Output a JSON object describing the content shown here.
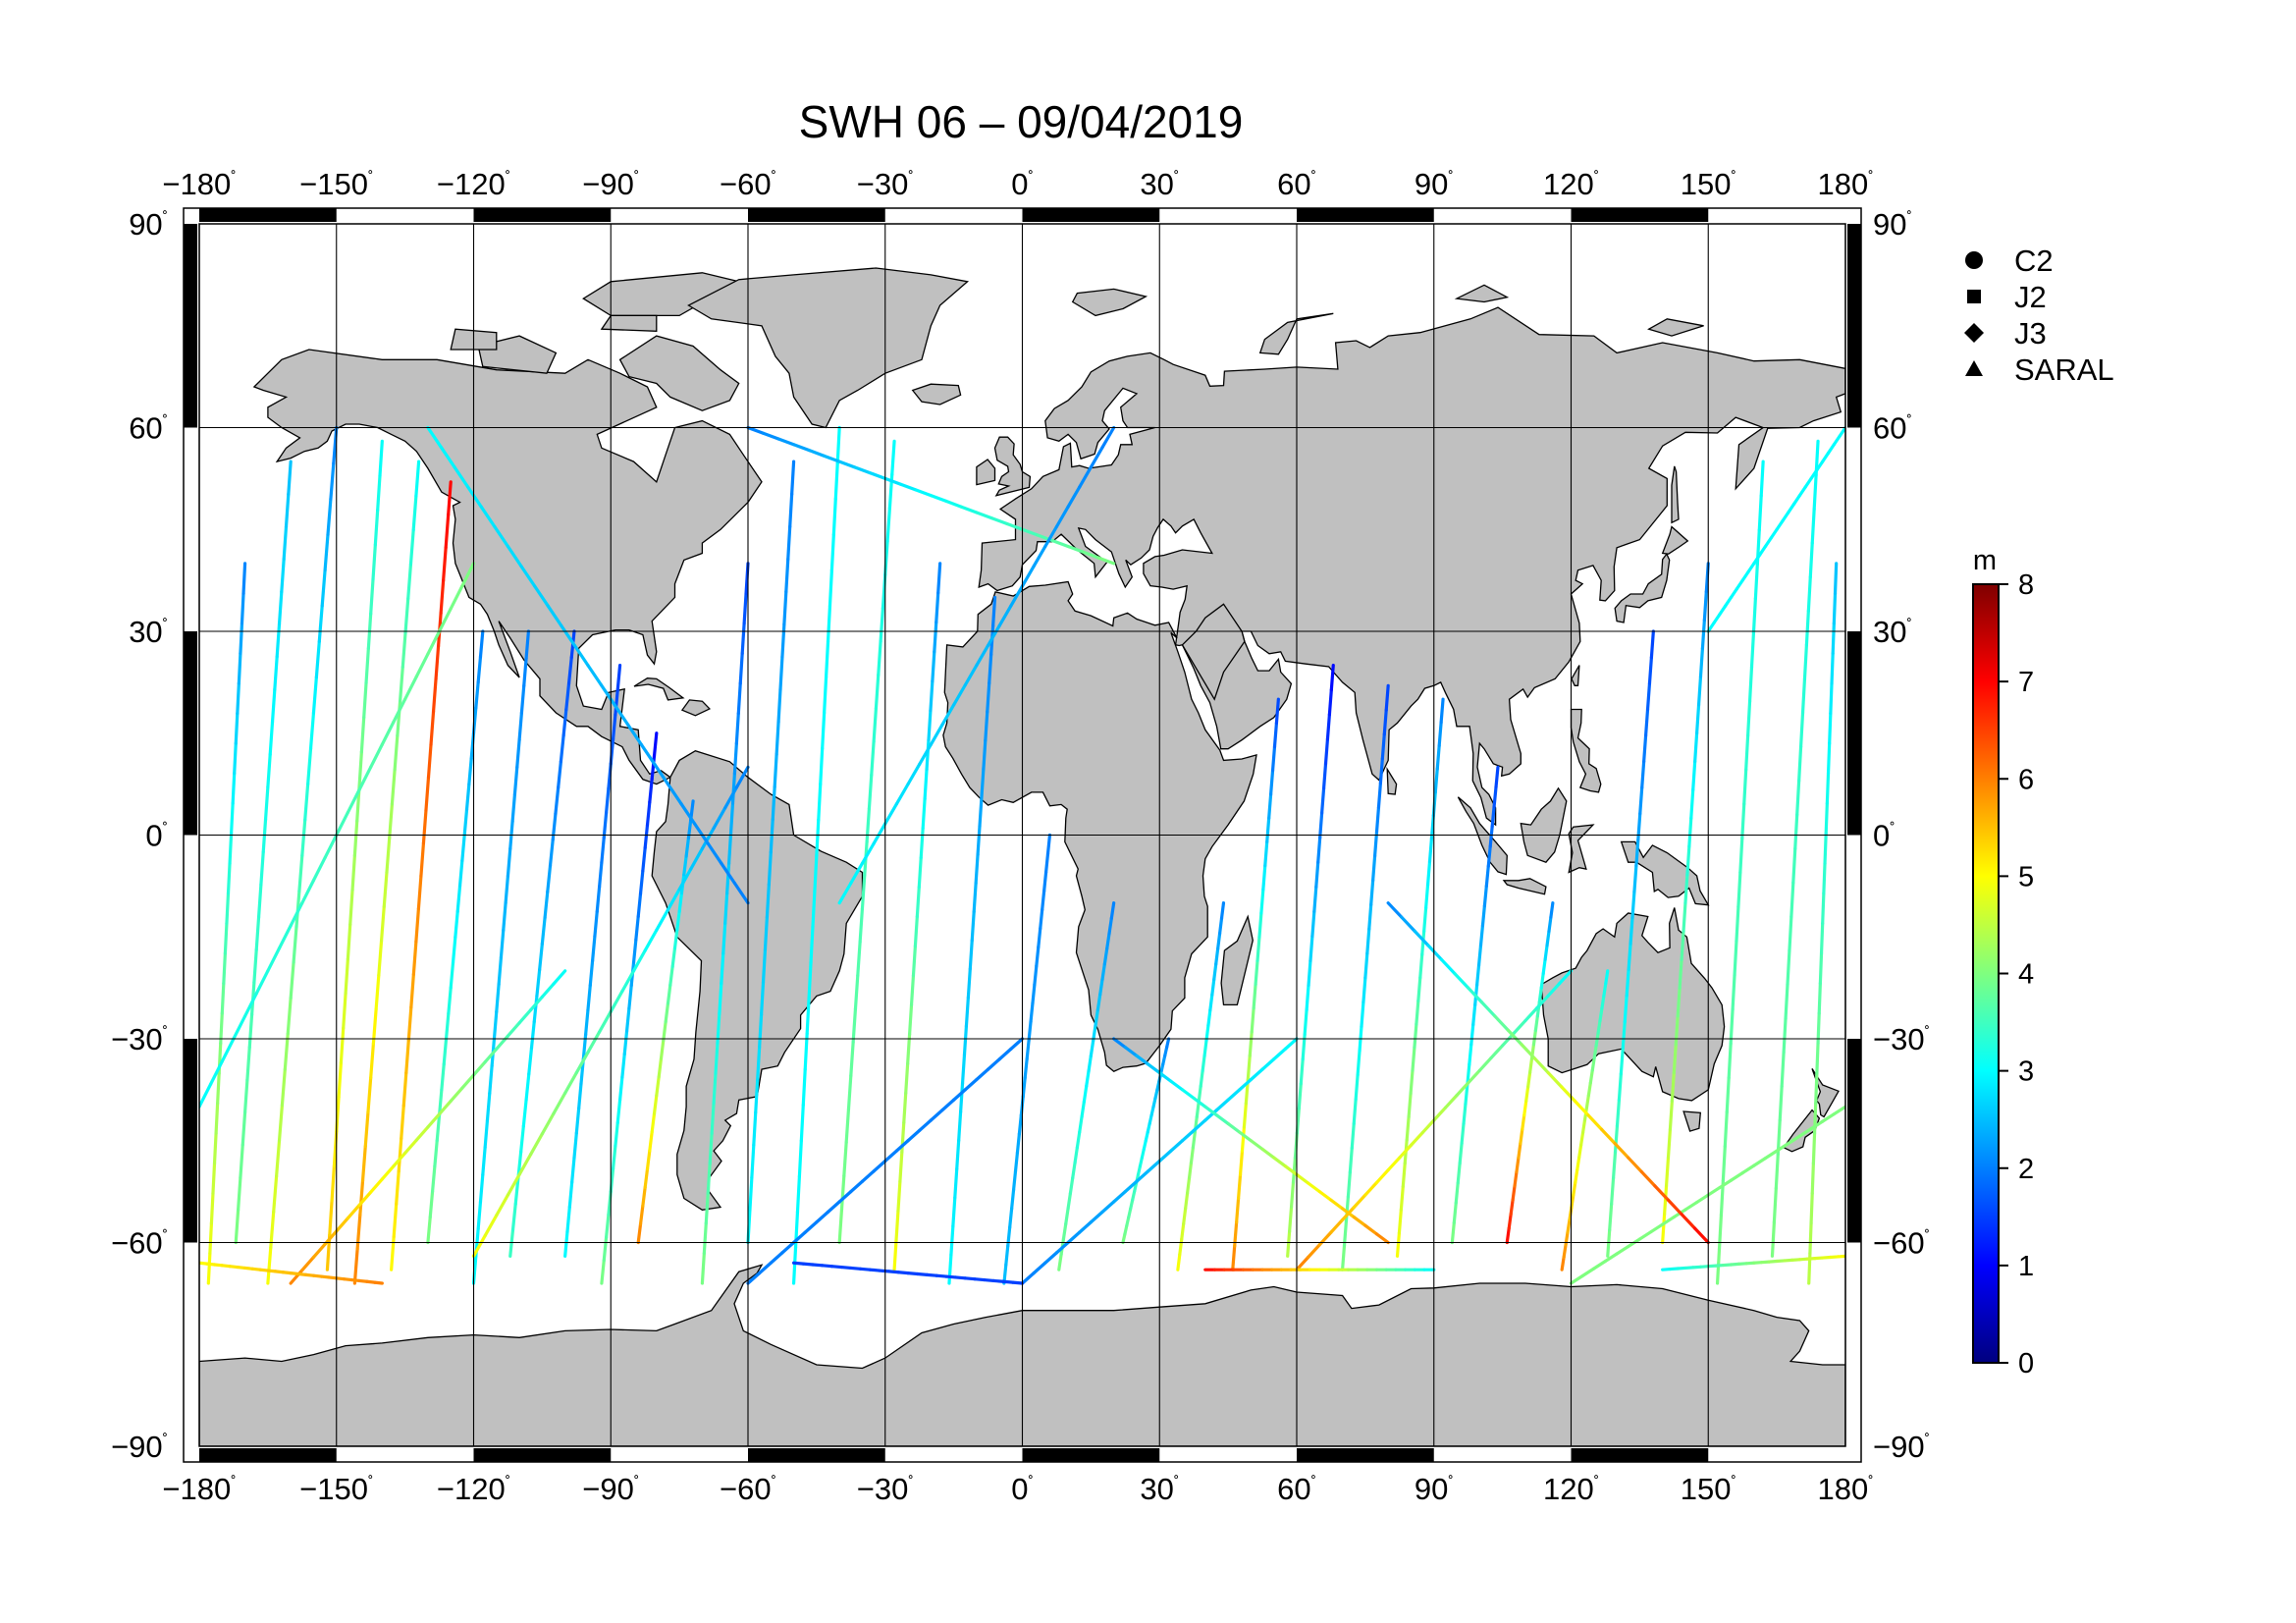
{
  "title": "SWH 06 – 09/04/2019",
  "lon_ticks": [
    "−180",
    "−150",
    "−120",
    "−90",
    "−60",
    "−30",
    "0",
    "30",
    "60",
    "90",
    "120",
    "150",
    "180"
  ],
  "lon_values": [
    -180,
    -150,
    -120,
    -90,
    -60,
    -30,
    0,
    30,
    60,
    90,
    120,
    150,
    180
  ],
  "lat_ticks": [
    "90",
    "60",
    "30",
    "0",
    "−30",
    "−60",
    "−90"
  ],
  "lat_values": [
    90,
    60,
    30,
    0,
    -30,
    -60,
    -90
  ],
  "degree_symbol": "˚",
  "legend": [
    {
      "label": "C2",
      "marker": "circle"
    },
    {
      "label": "J2",
      "marker": "square"
    },
    {
      "label": "J3",
      "marker": "diamond"
    },
    {
      "label": "SARAL",
      "marker": "triangle"
    }
  ],
  "colorbar": {
    "unit": "m",
    "min": 0,
    "max": 8,
    "tick_labels": [
      "0",
      "1",
      "2",
      "3",
      "4",
      "5",
      "6",
      "7",
      "8"
    ],
    "tick_values": [
      0,
      1,
      2,
      3,
      4,
      5,
      6,
      7,
      8
    ],
    "colors": [
      "#00007f",
      "#0000ff",
      "#007fff",
      "#00ffff",
      "#7fff7f",
      "#ffff00",
      "#ff7f00",
      "#ff0000",
      "#7f0000"
    ]
  },
  "colors": {
    "land": "#c0c0c0",
    "ocean": "#ffffff",
    "frame": "#000000",
    "grid": "#000000"
  },
  "map": {
    "projection": "plate-carree",
    "lon_range": [
      -180,
      180
    ],
    "lat_range": [
      -90,
      90
    ],
    "grid": true
  },
  "tracks": [
    {
      "lon": [
        -178,
        -170
      ],
      "lat": [
        -66,
        40
      ],
      "swh": [
        5,
        2
      ]
    },
    {
      "lon": [
        -172,
        -160
      ],
      "lat": [
        -60,
        55
      ],
      "swh": [
        4,
        2.5
      ]
    },
    {
      "lon": [
        -165,
        -150
      ],
      "lat": [
        -66,
        60
      ],
      "swh": [
        5,
        2
      ]
    },
    {
      "lon": [
        -152,
        -140
      ],
      "lat": [
        -64,
        58
      ],
      "swh": [
        5.5,
        3
      ]
    },
    {
      "lon": [
        -146,
        -132
      ],
      "lat": [
        -66,
        55
      ],
      "swh": [
        6,
        3
      ]
    },
    {
      "lon": [
        -138,
        -125
      ],
      "lat": [
        -64,
        52
      ],
      "swh": [
        5,
        7
      ]
    },
    {
      "lon": [
        -130,
        -118
      ],
      "lat": [
        -60,
        30
      ],
      "swh": [
        4,
        2
      ]
    },
    {
      "lon": [
        -120,
        -108
      ],
      "lat": [
        -66,
        30
      ],
      "swh": [
        3,
        2
      ]
    },
    {
      "lon": [
        -112,
        -98
      ],
      "lat": [
        -62,
        30
      ],
      "swh": [
        3.5,
        1.5
      ]
    },
    {
      "lon": [
        -100,
        -88
      ],
      "lat": [
        -62,
        25
      ],
      "swh": [
        3,
        1.5
      ]
    },
    {
      "lon": [
        -92,
        -80
      ],
      "lat": [
        -66,
        15
      ],
      "swh": [
        4,
        1
      ]
    },
    {
      "lon": [
        -84,
        -72
      ],
      "lat": [
        -60,
        5
      ],
      "swh": [
        6,
        2
      ]
    },
    {
      "lon": [
        -70,
        -60
      ],
      "lat": [
        -66,
        40
      ],
      "swh": [
        4,
        1.5
      ]
    },
    {
      "lon": [
        -60,
        -50
      ],
      "lat": [
        -60,
        55
      ],
      "swh": [
        3,
        2
      ]
    },
    {
      "lon": [
        -50,
        -40
      ],
      "lat": [
        -66,
        60
      ],
      "swh": [
        3,
        3
      ]
    },
    {
      "lon": [
        -40,
        -28
      ],
      "lat": [
        -60,
        58
      ],
      "swh": [
        4,
        3
      ]
    },
    {
      "lon": [
        -28,
        -18
      ],
      "lat": [
        -64,
        40
      ],
      "swh": [
        5,
        2
      ]
    },
    {
      "lon": [
        -16,
        -6
      ],
      "lat": [
        -66,
        35
      ],
      "swh": [
        3,
        2
      ]
    },
    {
      "lon": [
        -4,
        6
      ],
      "lat": [
        -66,
        0
      ],
      "swh": [
        2.5,
        2
      ]
    },
    {
      "lon": [
        8,
        20
      ],
      "lat": [
        -64,
        -10
      ],
      "swh": [
        4,
        2
      ]
    },
    {
      "lon": [
        22,
        32
      ],
      "lat": [
        -60,
        -30
      ],
      "swh": [
        4,
        2
      ]
    },
    {
      "lon": [
        34,
        44
      ],
      "lat": [
        -64,
        -10
      ],
      "swh": [
        5,
        2
      ]
    },
    {
      "lon": [
        46,
        56
      ],
      "lat": [
        -64,
        20
      ],
      "swh": [
        6,
        1.5
      ]
    },
    {
      "lon": [
        58,
        68
      ],
      "lat": [
        -62,
        25
      ],
      "swh": [
        4.5,
        1
      ]
    },
    {
      "lon": [
        70,
        80
      ],
      "lat": [
        -64,
        22
      ],
      "swh": [
        4,
        1.5
      ]
    },
    {
      "lon": [
        82,
        92
      ],
      "lat": [
        -62,
        20
      ],
      "swh": [
        5,
        2
      ]
    },
    {
      "lon": [
        94,
        104
      ],
      "lat": [
        -60,
        10
      ],
      "swh": [
        4,
        1.5
      ]
    },
    {
      "lon": [
        106,
        116
      ],
      "lat": [
        -60,
        -10
      ],
      "swh": [
        7,
        2
      ]
    },
    {
      "lon": [
        118,
        128
      ],
      "lat": [
        -64,
        -20
      ],
      "swh": [
        6,
        3
      ]
    },
    {
      "lon": [
        128,
        138
      ],
      "lat": [
        -62,
        30
      ],
      "swh": [
        4,
        1.5
      ]
    },
    {
      "lon": [
        140,
        150
      ],
      "lat": [
        -60,
        40
      ],
      "swh": [
        5,
        2
      ]
    },
    {
      "lon": [
        152,
        162
      ],
      "lat": [
        -66,
        55
      ],
      "swh": [
        4,
        3
      ]
    },
    {
      "lon": [
        164,
        174
      ],
      "lat": [
        -62,
        58
      ],
      "swh": [
        4,
        3
      ]
    },
    {
      "lon": [
        172,
        178
      ],
      "lat": [
        -66,
        40
      ],
      "swh": [
        4.5,
        2.5
      ]
    },
    {
      "lon": [
        -160,
        -100
      ],
      "lat": [
        -66,
        -20
      ],
      "swh": [
        6,
        3
      ]
    },
    {
      "lon": [
        -120,
        -60
      ],
      "lat": [
        -62,
        10
      ],
      "swh": [
        5,
        2
      ]
    },
    {
      "lon": [
        -60,
        0
      ],
      "lat": [
        -66,
        -30
      ],
      "swh": [
        2,
        2
      ]
    },
    {
      "lon": [
        0,
        60
      ],
      "lat": [
        -66,
        -30
      ],
      "swh": [
        2,
        3
      ]
    },
    {
      "lon": [
        60,
        120
      ],
      "lat": [
        -64,
        -20
      ],
      "swh": [
        6,
        3
      ]
    },
    {
      "lon": [
        120,
        180
      ],
      "lat": [
        -66,
        -40
      ],
      "swh": [
        4,
        4
      ]
    },
    {
      "lon": [
        -180,
        -120
      ],
      "lat": [
        -40,
        40
      ],
      "swh": [
        3,
        4
      ]
    },
    {
      "lon": [
        -130,
        -60
      ],
      "lat": [
        60,
        -10
      ],
      "swh": [
        3,
        2
      ]
    },
    {
      "lon": [
        -60,
        20
      ],
      "lat": [
        60,
        40
      ],
      "swh": [
        2,
        4
      ]
    },
    {
      "lon": [
        -40,
        20
      ],
      "lat": [
        -10,
        60
      ],
      "swh": [
        3,
        2
      ]
    },
    {
      "lon": [
        20,
        80
      ],
      "lat": [
        -30,
        -60
      ],
      "swh": [
        2,
        6
      ]
    },
    {
      "lon": [
        80,
        150
      ],
      "lat": [
        -10,
        -60
      ],
      "swh": [
        2,
        7
      ]
    },
    {
      "lon": [
        150,
        180
      ],
      "lat": [
        30,
        60
      ],
      "swh": [
        3,
        3
      ]
    },
    {
      "lon": [
        -180,
        -140
      ],
      "lat": [
        -63,
        -66
      ],
      "swh": [
        5,
        6
      ]
    },
    {
      "lon": [
        -50,
        0
      ],
      "lat": [
        -63,
        -66
      ],
      "swh": [
        1.5,
        1.5
      ]
    },
    {
      "lon": [
        40,
        90
      ],
      "lat": [
        -64,
        -64
      ],
      "swh": [
        7,
        3
      ]
    },
    {
      "lon": [
        140,
        180
      ],
      "lat": [
        -64,
        -62
      ],
      "swh": [
        3,
        5
      ]
    }
  ]
}
